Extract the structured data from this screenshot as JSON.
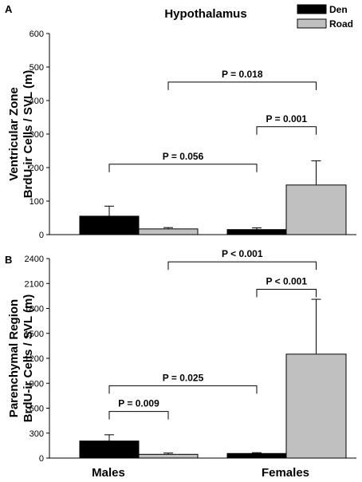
{
  "chart_data": [
    {
      "type": "bar",
      "panel": "A",
      "title": "Hypothalamus",
      "categories": [
        "Males",
        "Females"
      ],
      "series": [
        {
          "name": "Den",
          "color": "#000000",
          "values": [
            55,
            15
          ],
          "errors": [
            30,
            5
          ]
        },
        {
          "name": "Road",
          "color": "#c0c0c0",
          "values": [
            17,
            148
          ],
          "errors": [
            4,
            72
          ]
        }
      ],
      "ylabel_lines": [
        "Ventricular Zone",
        "BrdU-ir Cells / SVL (m)"
      ],
      "ylim": [
        0,
        600
      ],
      "yticks": [
        0,
        100,
        200,
        300,
        400,
        500,
        600
      ],
      "legend_position": "top-right",
      "comparisons": [
        {
          "label": "P = 0.056",
          "from": [
            0,
            0
          ],
          "to": [
            1,
            0
          ],
          "level": 210
        },
        {
          "label": "P = 0.001",
          "from": [
            1,
            0
          ],
          "to": [
            1,
            1
          ],
          "level": 322
        },
        {
          "label": "P = 0.018",
          "from": [
            0,
            1
          ],
          "to": [
            1,
            1
          ],
          "level": 455
        }
      ]
    },
    {
      "type": "bar",
      "panel": "B",
      "categories": [
        "Males",
        "Females"
      ],
      "series": [
        {
          "name": "Den",
          "color": "#000000",
          "values": [
            205,
            55
          ],
          "errors": [
            75,
            10
          ]
        },
        {
          "name": "Road",
          "color": "#c0c0c0",
          "values": [
            45,
            1250
          ],
          "errors": [
            15,
            660
          ]
        }
      ],
      "ylabel_lines": [
        "Parenchymal Region",
        "BrdU-ir Cells / SVL (m)"
      ],
      "ylim": [
        0,
        2400
      ],
      "yticks": [
        0,
        300,
        600,
        900,
        1200,
        1500,
        1800,
        2100,
        2400
      ],
      "xlabels": [
        "Males",
        "Females"
      ],
      "comparisons": [
        {
          "label": "P = 0.009",
          "from": [
            0,
            0
          ],
          "to": [
            0,
            1
          ],
          "level": 560
        },
        {
          "label": "P = 0.025",
          "from": [
            0,
            0
          ],
          "to": [
            1,
            0
          ],
          "level": 870
        },
        {
          "label": "P < 0.001",
          "from": [
            1,
            0
          ],
          "to": [
            1,
            1
          ],
          "level": 2030
        },
        {
          "label": "P < 0.001",
          "from": [
            0,
            1
          ],
          "to": [
            1,
            1
          ],
          "level": 2360
        }
      ]
    }
  ]
}
